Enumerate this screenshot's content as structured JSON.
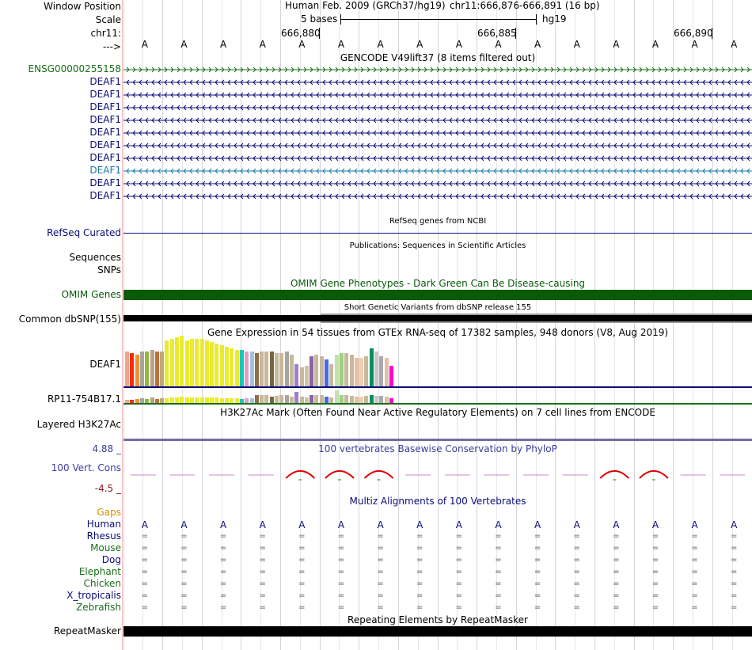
{
  "header": {
    "window_position_label": "Window Position",
    "scale_label": "Scale",
    "chrom_label": "chr11:",
    "arrow_label": "--->",
    "assembly_text": "Human Feb. 2009 (GRCh37/hg19)",
    "position_text": "chr11:666,876-666,891 (16 bp)",
    "scale_text": "5 bases",
    "db_text": "hg19",
    "ticks": [
      "666,880",
      "666,885",
      "666,890"
    ]
  },
  "sequence": [
    "A",
    "A",
    "A",
    "A",
    "A",
    "A",
    "A",
    "A",
    "A",
    "A",
    "A",
    "A",
    "A",
    "A",
    "A",
    "A"
  ],
  "gencode": {
    "title": "GENCODE V49lift37 (8 items filtered out)",
    "items": [
      {
        "name": "ENSG00000255158",
        "color": "#1a6e1a",
        "strand": "+"
      },
      {
        "name": "DEAF1",
        "color": "#0c0c78",
        "strand": "-"
      },
      {
        "name": "DEAF1",
        "color": "#0c0c78",
        "strand": "-"
      },
      {
        "name": "DEAF1",
        "color": "#0c0c78",
        "strand": "-"
      },
      {
        "name": "DEAF1",
        "color": "#0c0c78",
        "strand": "-"
      },
      {
        "name": "DEAF1",
        "color": "#0c0c78",
        "strand": "-"
      },
      {
        "name": "DEAF1",
        "color": "#0c0c78",
        "strand": "-"
      },
      {
        "name": "DEAF1",
        "color": "#0c0c78",
        "strand": "-"
      },
      {
        "name": "DEAF1",
        "color": "#1a7aa8",
        "strand": "-"
      },
      {
        "name": "DEAF1",
        "color": "#0c0c78",
        "strand": "-"
      },
      {
        "name": "DEAF1",
        "color": "#0c0c78",
        "strand": "-"
      }
    ]
  },
  "refseq": {
    "title": "RefSeq genes from NCBI",
    "label": "RefSeq Curated"
  },
  "publications": {
    "title": "Publications: Sequences in Scientific Articles",
    "label_sequences": "Sequences",
    "label_snps": "SNPs"
  },
  "omim": {
    "title": "OMIM Gene Phenotypes - Dark Green Can Be Disease-causing",
    "label": "OMIM Genes",
    "color": "#0a5a0a"
  },
  "dbsnp": {
    "title": "Short Genetic Variants from dbSNP release 155",
    "label": "Common dbSNP(155)"
  },
  "gtex": {
    "title": "Gene Expression in 54 tissues from GTEx RNA-seq of 17382 samples, 948 donors (V8, Aug 2019)",
    "gene1": "DEAF1",
    "gene2": "RP11-754B17.1",
    "colors": [
      "#f5a38c",
      "#ff2a00",
      "#f09030",
      "#a6a69c",
      "#8fba38",
      "#b8a08c",
      "#c26e3c",
      "#c2a878",
      "#ebeb2e",
      "#ebeb2e",
      "#ebeb2e",
      "#ebeb2e",
      "#ebeb2e",
      "#ebeb2e",
      "#ebeb2e",
      "#ebeb2e",
      "#ebeb2e",
      "#ebeb2e",
      "#ebeb2e",
      "#ebeb2e",
      "#ebeb2e",
      "#ebeb2e",
      "#ebeb2e",
      "#18c4c4",
      "#d8a0c8",
      "#a6bee0",
      "#8f6e4c",
      "#c8b89c",
      "#c8b89c",
      "#7a6440",
      "#c8b89c",
      "#c8b89c",
      "#a6a69c",
      "#c8b89c",
      "#9e80c8",
      "#c8b89c",
      "#d0c4a8",
      "#8a64a8",
      "#c8b89c",
      "#c8b89c",
      "#4a68e0",
      "#c8b89c",
      "#c0e0b0",
      "#a0d080",
      "#c8b89c",
      "#c8b89c",
      "#e8c0a0",
      "#f0d0b0",
      "#c8b89c",
      "#0a8e5a",
      "#c8c8c8",
      "#aaaaaa",
      "#e0c0a8",
      "#ff00d0"
    ],
    "deaf1_values": [
      44,
      42,
      40,
      44,
      44,
      46,
      44,
      44,
      58,
      60,
      62,
      64,
      58,
      60,
      60,
      60,
      58,
      56,
      54,
      52,
      50,
      48,
      46,
      46,
      44,
      44,
      42,
      44,
      44,
      44,
      42,
      42,
      44,
      40,
      28,
      24,
      26,
      38,
      40,
      38,
      34,
      28,
      40,
      42,
      42,
      40,
      36,
      36,
      38,
      48,
      44,
      38,
      36,
      26
    ],
    "rp11_values": [
      4,
      4,
      5,
      6,
      5,
      7,
      5,
      6,
      6,
      7,
      7,
      8,
      7,
      7,
      7,
      7,
      7,
      7,
      7,
      6,
      6,
      6,
      6,
      5,
      6,
      6,
      10,
      10,
      10,
      8,
      9,
      10,
      10,
      8,
      14,
      8,
      7,
      10,
      10,
      10,
      8,
      7,
      16,
      10,
      10,
      9,
      8,
      8,
      9,
      10,
      9,
      9,
      8,
      6
    ]
  },
  "h3k27ac": {
    "title": "H3K27Ac Mark (Often Found Near Active Regulatory Elements) on 7 cell lines from ENCODE",
    "label": "Layered H3K27Ac"
  },
  "conservation": {
    "title": "100 vertebrates Basewise Conservation by PhyloP",
    "label": "100 Vert. Cons",
    "max_label": "4.88 _",
    "min_label": "-4.5 _",
    "values": [
      -0.1,
      -0.1,
      -0.1,
      -0.1,
      0.9,
      0.9,
      0.9,
      -0.1,
      -0.1,
      -0.1,
      -0.1,
      -0.1,
      0.9,
      0.9,
      -0.1,
      -0.1
    ],
    "ylim": [
      -4.5,
      4.88
    ]
  },
  "multiz": {
    "title": "Multiz Alignments of 100 Vertebrates",
    "gaps_label": "Gaps",
    "species": [
      {
        "name": "Human",
        "color": "#0c0c78"
      },
      {
        "name": "Rhesus",
        "color": "#0c0c78"
      },
      {
        "name": "Mouse",
        "color": "#1a6e1a"
      },
      {
        "name": "Dog",
        "color": "#0c0c78"
      },
      {
        "name": "Elephant",
        "color": "#1a6e1a"
      },
      {
        "name": "Chicken",
        "color": "#1a6e1a"
      },
      {
        "name": "X_tropicalis",
        "color": "#0c0c78"
      },
      {
        "name": "Zebrafish",
        "color": "#1a6e1a"
      }
    ],
    "human_base": "A",
    "match_symbol": "="
  },
  "repeatmasker": {
    "title": "Repeating Elements by RepeatMasker",
    "label": "RepeatMasker"
  }
}
